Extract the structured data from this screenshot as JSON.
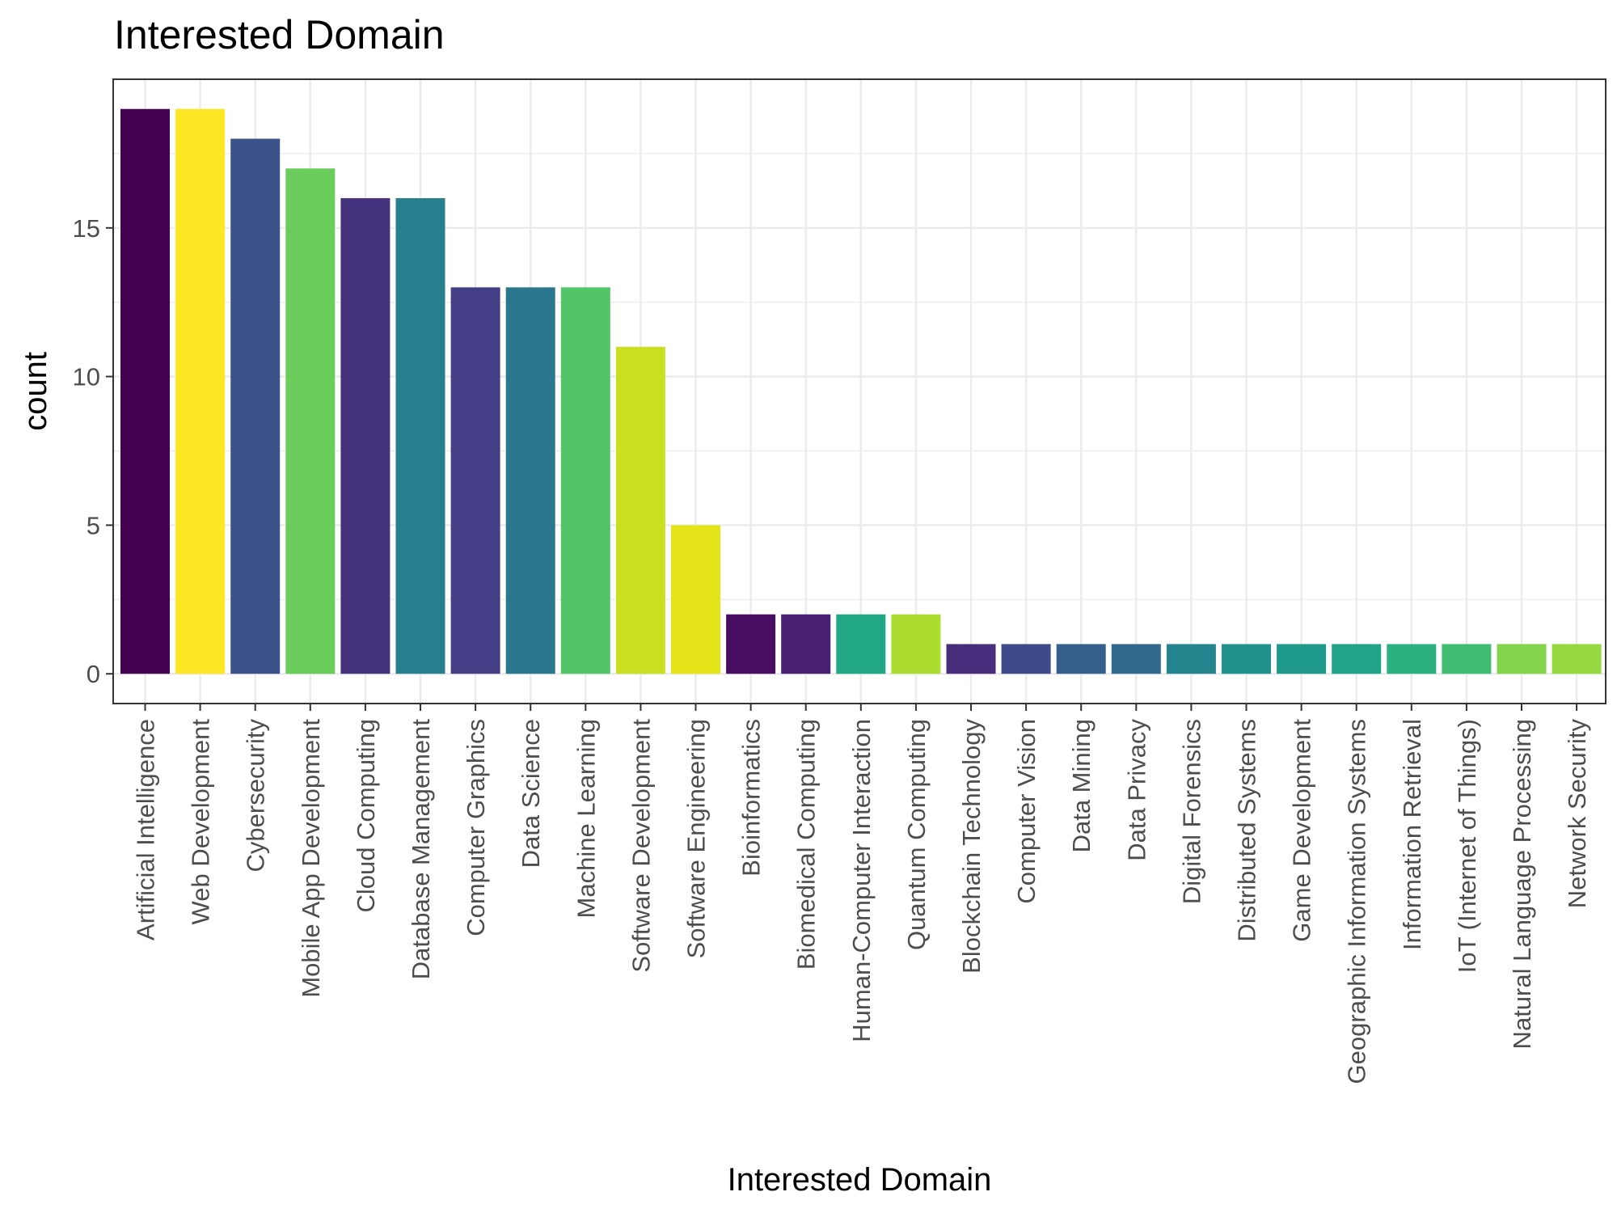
{
  "chart_data": {
    "type": "bar",
    "title": "Interested Domain",
    "xlabel": "Interested Domain",
    "ylabel": "count",
    "ylim": [
      -1,
      20
    ],
    "yticks": [
      0,
      5,
      10,
      15
    ],
    "grid": true,
    "legend": "none",
    "categories": [
      "Artificial Intelligence",
      "Web Development",
      "Cybersecurity",
      "Mobile App Development",
      "Cloud Computing",
      "Database Management",
      "Computer Graphics",
      "Data Science",
      "Machine Learning",
      "Software Development",
      "Software Engineering",
      "Bioinformatics",
      "Biomedical Computing",
      "Human-Computer Interaction",
      "Quantum Computing",
      "Blockchain Technology",
      "Computer Vision",
      "Data Mining",
      "Data Privacy",
      "Digital Forensics",
      "Distributed Systems",
      "Game Development",
      "Geographic Information Systems",
      "Information Retrieval",
      "IoT (Internet of Things)",
      "Natural Language Processing",
      "Network Security"
    ],
    "values": [
      19,
      19,
      18,
      17,
      16,
      16,
      13,
      13,
      13,
      11,
      5,
      2,
      2,
      2,
      2,
      1,
      1,
      1,
      1,
      1,
      1,
      1,
      1,
      1,
      1,
      1,
      1
    ],
    "colors": [
      "#440154",
      "#FDE725",
      "#3B528B",
      "#6ACD5B",
      "#46337E",
      "#277F8E",
      "#433E85",
      "#2A788E",
      "#52C569",
      "#C8E020",
      "#E5E419",
      "#470D60",
      "#482173",
      "#22A884",
      "#ADDC30",
      "#472D7B",
      "#3E4A89",
      "#355F8D",
      "#31688E",
      "#25858E",
      "#21918C",
      "#1F998A",
      "#20A386",
      "#2BB07F",
      "#40BD72",
      "#84D44B",
      "#95D840"
    ]
  }
}
